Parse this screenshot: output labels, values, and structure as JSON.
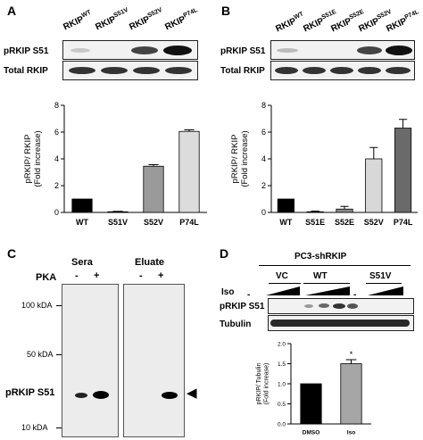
{
  "panelA": {
    "label": "A",
    "lanes": [
      {
        "base": "RKIP",
        "sup": "WT"
      },
      {
        "base": "RKIP",
        "sup": "S51V"
      },
      {
        "base": "RKIP",
        "sup": "S52V"
      },
      {
        "base": "RKIP",
        "sup": "P74L"
      }
    ],
    "blot_rows": [
      "pRKIP S51",
      "Total RKIP"
    ],
    "chart_data": {
      "type": "bar",
      "categories": [
        "WT",
        "S51V",
        "S52V",
        "P74L"
      ],
      "values": [
        1.0,
        0.05,
        3.45,
        6.05
      ],
      "errors": [
        0,
        0.03,
        0.12,
        0.12
      ],
      "colors": [
        "#000000",
        "#444444",
        "#9a9a9a",
        "#dcdcdc"
      ],
      "ylabel": "pRKIP/ RKIP",
      "ylabel2": "(Fold increase)",
      "ylim": [
        0,
        8
      ],
      "yticks": [
        0,
        2,
        4,
        6,
        8
      ]
    }
  },
  "panelB": {
    "label": "B",
    "lanes": [
      {
        "base": "RKIP",
        "sup": "WT"
      },
      {
        "base": "RKIP",
        "sup": "S51E"
      },
      {
        "base": "RKIP",
        "sup": "S52E"
      },
      {
        "base": "RKIP",
        "sup": "S52V"
      },
      {
        "base": "RKIP",
        "sup": "P74L"
      }
    ],
    "blot_rows": [
      "pRKIP S51",
      "Total RKIP"
    ],
    "chart_data": {
      "type": "bar",
      "categories": [
        "WT",
        "S51E",
        "S52E",
        "S52V",
        "P74L"
      ],
      "values": [
        1.0,
        0.05,
        0.25,
        4.0,
        6.3
      ],
      "errors": [
        0,
        0.05,
        0.2,
        0.85,
        0.65
      ],
      "colors": [
        "#000000",
        "#3a3a3a",
        "#8a8a8a",
        "#d8d8d8",
        "#6a6a6a"
      ],
      "ylabel": "pRKIP/ RKIP",
      "ylabel2": "(Fold increase)",
      "ylim": [
        0,
        8
      ],
      "yticks": [
        0,
        2,
        4,
        6,
        8
      ]
    }
  },
  "panelC": {
    "label": "C",
    "groups": [
      "Sera",
      "Eluate"
    ],
    "treatment": "PKA",
    "signs": [
      "-",
      "+",
      "-",
      "+"
    ],
    "markers": [
      "100 kDA",
      "50 kDA",
      "10 kDA"
    ],
    "band_label": "pRKIP S51",
    "arrow": "◀"
  },
  "panelD": {
    "label": "D",
    "title": "PC3-shRKIP",
    "groups": [
      "VC",
      "WT",
      "S51V"
    ],
    "treatment": "Iso",
    "blot_rows": [
      "pRKIP S51",
      "Tubulin"
    ],
    "significance": "*",
    "chart_data": {
      "type": "bar",
      "categories": [
        "DMSO",
        "Iso"
      ],
      "values": [
        1.0,
        1.5
      ],
      "errors": [
        0,
        0.1
      ],
      "colors": [
        "#000000",
        "#a6a6a6"
      ],
      "ylabel": "pRKIP/ Tubulin",
      "ylabel2": "(Fold increase)",
      "ylim": [
        0,
        2.0
      ],
      "yticks": [
        0,
        0.5,
        1.0,
        1.5,
        2.0
      ]
    }
  }
}
